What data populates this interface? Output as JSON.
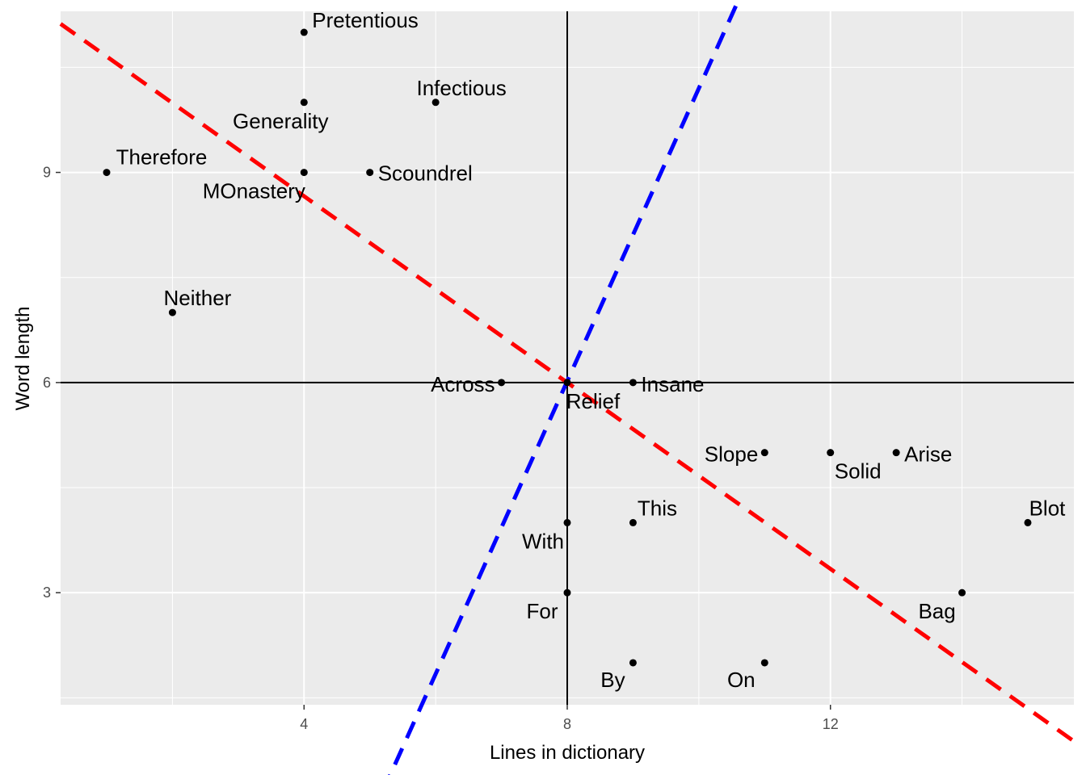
{
  "chart_data": {
    "type": "scatter",
    "xlabel": "Lines in dictionary",
    "ylabel": "Word length",
    "xlim": [
      0.3,
      15.7
    ],
    "ylim": [
      1.4,
      11.3
    ],
    "x_major_ticks": [
      4,
      8,
      12
    ],
    "x_minor_ticks": [
      2,
      6,
      10,
      14
    ],
    "y_major_ticks": [
      3,
      6,
      9
    ],
    "y_minor_ticks": [
      1.5,
      4.5,
      7.5,
      10.5
    ],
    "grid": true,
    "background": "#ebebeb",
    "points": [
      {
        "label": "Pretentious",
        "x": 4,
        "y": 11
      },
      {
        "label": "Infectious",
        "x": 6,
        "y": 10
      },
      {
        "label": "Generality",
        "x": 4,
        "y": 10
      },
      {
        "label": "Therefore",
        "x": 1,
        "y": 9
      },
      {
        "label": "MOnastery",
        "x": 4,
        "y": 9
      },
      {
        "label": "Scoundrel",
        "x": 5,
        "y": 9
      },
      {
        "label": "Neither",
        "x": 2,
        "y": 7
      },
      {
        "label": "Across",
        "x": 7,
        "y": 6
      },
      {
        "label": "Insane",
        "x": 9,
        "y": 6
      },
      {
        "label": "Relief",
        "x": 8,
        "y": 6
      },
      {
        "label": "Slope",
        "x": 11,
        "y": 5
      },
      {
        "label": "Solid",
        "x": 12,
        "y": 5
      },
      {
        "label": "Arise",
        "x": 13,
        "y": 5
      },
      {
        "label": "This",
        "x": 9,
        "y": 4
      },
      {
        "label": "With",
        "x": 8,
        "y": 4
      },
      {
        "label": "Blot",
        "x": 15,
        "y": 4
      },
      {
        "label": "For",
        "x": 8,
        "y": 3
      },
      {
        "label": "Bag",
        "x": 14,
        "y": 3
      },
      {
        "label": "By",
        "x": 9,
        "y": 2
      },
      {
        "label": "On",
        "x": 11,
        "y": 2
      }
    ],
    "reference_lines": [
      {
        "kind": "vline",
        "x": 8,
        "color": "#000000"
      },
      {
        "kind": "hline",
        "y": 6,
        "color": "#000000"
      }
    ],
    "fitted_lines": [
      {
        "color": "#ff0000",
        "style": "dashed",
        "x_range": [
          0.3,
          15.7
        ],
        "intercept": 11.32,
        "slope": -0.665
      },
      {
        "color": "#0000ff",
        "style": "dashed",
        "x_range": [
          5.2,
          11.7
        ],
        "intercept": -10.7,
        "slope": 2.09
      }
    ]
  }
}
